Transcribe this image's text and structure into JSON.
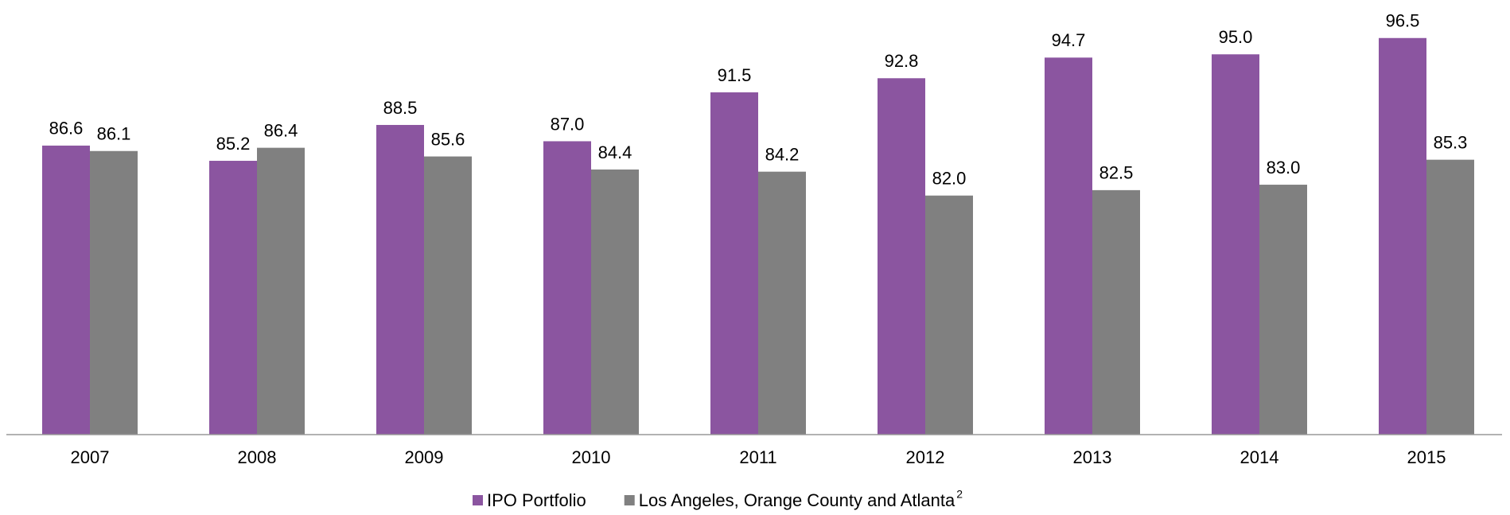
{
  "chart_data": {
    "type": "bar",
    "categories": [
      "2007",
      "2008",
      "2009",
      "2010",
      "2011",
      "2012",
      "2013",
      "2014",
      "2015"
    ],
    "series": [
      {
        "name": "IPO Portfolio",
        "color": "#8b55a0",
        "values": [
          86.6,
          85.2,
          88.5,
          87.0,
          91.5,
          92.8,
          94.7,
          95.0,
          96.5
        ],
        "value_labels": [
          "86.6",
          "85.2",
          "88.5",
          "87.0",
          "91.5",
          "92.8",
          "94.7",
          "95.0",
          "96.5"
        ]
      },
      {
        "name": "Los Angeles, Orange County and Atlanta",
        "name_superscript": "2",
        "color": "#808080",
        "values": [
          86.1,
          86.4,
          85.6,
          84.4,
          84.2,
          82.0,
          82.5,
          83.0,
          85.3
        ],
        "value_labels": [
          "86.1",
          "86.4",
          "85.6",
          "84.4",
          "84.2",
          "82.0",
          "82.5",
          "83.0",
          "85.3"
        ]
      }
    ],
    "ylim": [
      60,
      100
    ],
    "grid": false,
    "legend": "bottom"
  }
}
